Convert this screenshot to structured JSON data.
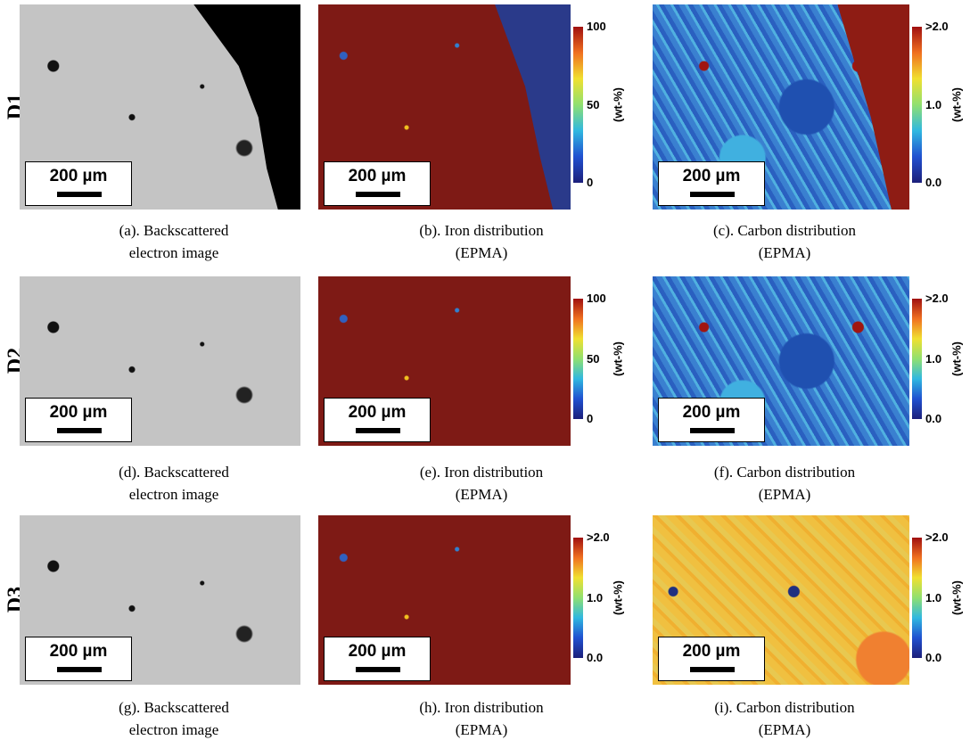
{
  "rows": [
    {
      "label": "D1",
      "panels": [
        {
          "caption": [
            "(a). Backscattered",
            "electron image"
          ],
          "scale_bar": "200 µm"
        },
        {
          "caption": [
            "(b). Iron distribution",
            "(EPMA)"
          ],
          "scale_bar": "200 µm",
          "colorbar": {
            "unit": "(wt-%)",
            "ticks": [
              "100",
              "50",
              "0"
            ]
          }
        },
        {
          "caption": [
            "(c). Carbon distribution",
            "(EPMA)"
          ],
          "scale_bar": "200 µm",
          "colorbar": {
            "unit": "(wt-%)",
            "ticks": [
              ">2.0",
              "1.0",
              "0.0"
            ]
          }
        }
      ]
    },
    {
      "label": "D2",
      "panels": [
        {
          "caption": [
            "(d). Backscattered",
            "electron image"
          ],
          "scale_bar": "200 µm"
        },
        {
          "caption": [
            "(e). Iron distribution",
            "(EPMA)"
          ],
          "scale_bar": "200 µm",
          "colorbar": {
            "unit": "(wt-%)",
            "ticks": [
              "100",
              "50",
              "0"
            ]
          }
        },
        {
          "caption": [
            "(f). Carbon distribution",
            "(EPMA)"
          ],
          "scale_bar": "200 µm",
          "colorbar": {
            "unit": "(wt-%)",
            "ticks": [
              ">2.0",
              "1.0",
              "0.0"
            ]
          }
        }
      ]
    },
    {
      "label": "D3",
      "panels": [
        {
          "caption": [
            "(g). Backscattered",
            "electron image"
          ],
          "scale_bar": "200 µm"
        },
        {
          "caption": [
            "(h). Iron distribution",
            "(EPMA)"
          ],
          "scale_bar": "200 µm",
          "colorbar": {
            "unit": "(wt-%)",
            "ticks": [
              ">2.0",
              "1.0",
              "0.0"
            ]
          }
        },
        {
          "caption": [
            "(i). Carbon distribution",
            "(EPMA)"
          ],
          "scale_bar": "200 µm",
          "colorbar": {
            "unit": "(wt-%)",
            "ticks": [
              ">2.0",
              "1.0",
              "0.0"
            ]
          }
        }
      ]
    }
  ]
}
